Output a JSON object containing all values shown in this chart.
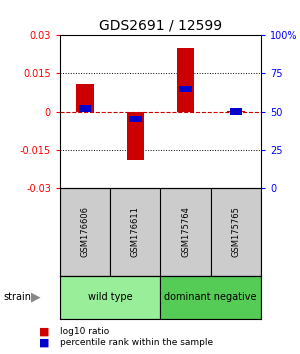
{
  "title": "GDS2691 / 12599",
  "samples": [
    "GSM176606",
    "GSM176611",
    "GSM175764",
    "GSM175765"
  ],
  "log10_ratio": [
    0.011,
    -0.019,
    0.025,
    0.0002
  ],
  "percentile_rank": [
    52,
    45,
    65,
    50
  ],
  "ylim_left": [
    -0.03,
    0.03
  ],
  "ylim_right": [
    0,
    100
  ],
  "yticks_left": [
    -0.03,
    -0.015,
    0,
    0.015,
    0.03
  ],
  "yticks_right": [
    0,
    25,
    50,
    75,
    100
  ],
  "ytick_labels_left": [
    "-0.03",
    "-0.015",
    "0",
    "0.015",
    "0.03"
  ],
  "ytick_labels_right": [
    "0",
    "25",
    "50",
    "75",
    "100%"
  ],
  "groups": [
    {
      "label": "wild type",
      "samples": [
        0,
        1
      ],
      "color": "#99EE99"
    },
    {
      "label": "dominant negative",
      "samples": [
        2,
        3
      ],
      "color": "#55CC55"
    }
  ],
  "bar_color": "#CC0000",
  "blue_color": "#0000CC",
  "zero_line_color": "#CC0000",
  "bg_color": "#FFFFFF",
  "sample_box_color": "#CCCCCC",
  "bar_width": 0.35,
  "blue_bar_height": 0.0025
}
